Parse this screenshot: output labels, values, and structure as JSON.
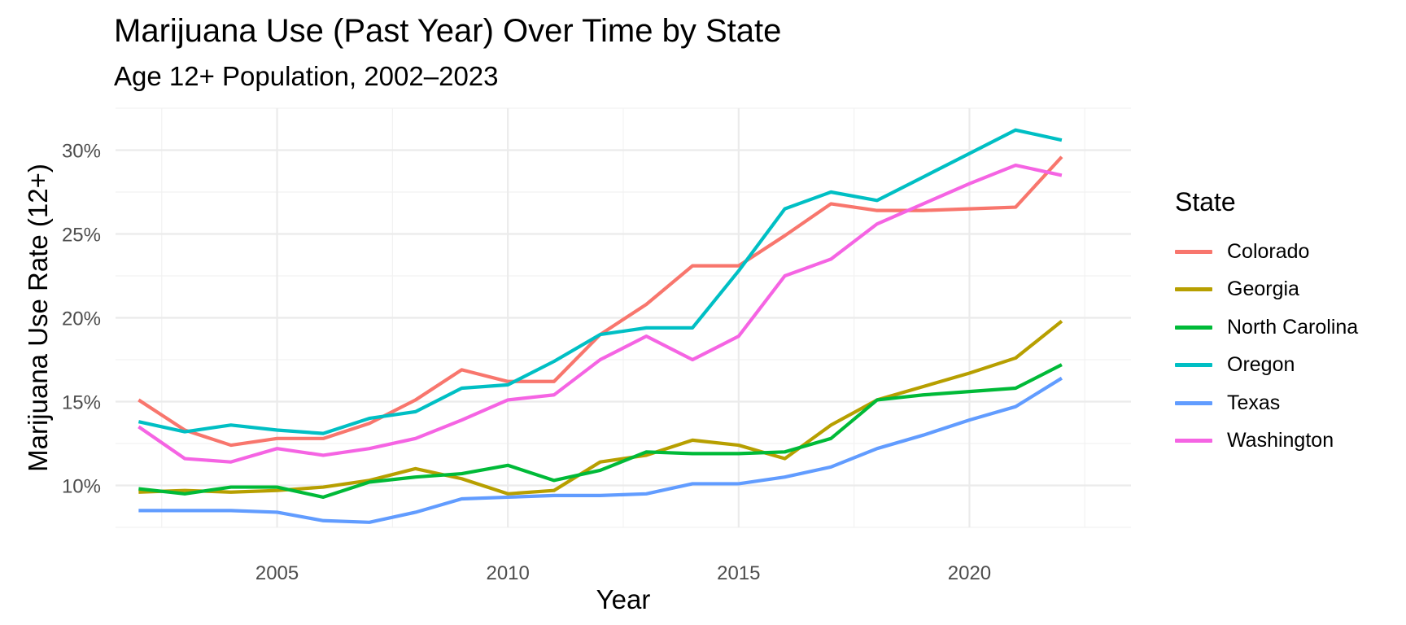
{
  "chart_data": {
    "type": "line",
    "title": "Marijuana Use (Past Year) Over Time by State",
    "subtitle": "Age 12+ Population, 2002–2023",
    "xlabel": "Year",
    "ylabel": "Marijuana Use Rate (12+)",
    "xlim": [
      2001.5,
      2023.5
    ],
    "ylim": [
      7.5,
      32.5
    ],
    "x_ticks": [
      2005,
      2010,
      2015,
      2020
    ],
    "y_ticks": [
      10,
      15,
      20,
      25,
      30
    ],
    "y_tick_labels": [
      "10%",
      "15%",
      "20%",
      "25%",
      "30%"
    ],
    "grid": true,
    "legend_title": "State",
    "legend_position": "right",
    "x": [
      2002,
      2003,
      2004,
      2005,
      2006,
      2007,
      2008,
      2009,
      2010,
      2011,
      2012,
      2013,
      2014,
      2015,
      2016,
      2017,
      2018,
      2019,
      2020,
      2021,
      2022
    ],
    "series": [
      {
        "name": "Colorado",
        "color": "#F8766D",
        "values": [
          15.1,
          13.3,
          12.4,
          12.8,
          12.8,
          13.7,
          15.1,
          16.9,
          16.2,
          16.2,
          19.0,
          20.8,
          23.1,
          23.1,
          24.9,
          26.8,
          26.4,
          26.4,
          26.5,
          26.6,
          29.6
        ]
      },
      {
        "name": "Georgia",
        "color": "#B79F00",
        "values": [
          9.6,
          9.7,
          9.6,
          9.7,
          9.9,
          10.3,
          11.0,
          10.4,
          9.5,
          9.7,
          11.4,
          11.8,
          12.7,
          12.4,
          11.6,
          13.6,
          15.1,
          15.9,
          16.7,
          17.6,
          19.8
        ]
      },
      {
        "name": "North Carolina",
        "color": "#00BA38",
        "values": [
          9.8,
          9.5,
          9.9,
          9.9,
          9.3,
          10.2,
          10.5,
          10.7,
          11.2,
          10.3,
          10.9,
          12.0,
          11.9,
          11.9,
          12.0,
          12.8,
          15.1,
          15.4,
          15.6,
          15.8,
          17.2
        ]
      },
      {
        "name": "Oregon",
        "color": "#00BFC4",
        "values": [
          13.8,
          13.2,
          13.6,
          13.3,
          13.1,
          14.0,
          14.4,
          15.8,
          16.0,
          17.4,
          19.0,
          19.4,
          19.4,
          22.8,
          26.5,
          27.5,
          27.0,
          28.4,
          29.8,
          31.2,
          30.6
        ]
      },
      {
        "name": "Texas",
        "color": "#619CFF",
        "values": [
          8.5,
          8.5,
          8.5,
          8.4,
          7.9,
          7.8,
          8.4,
          9.2,
          9.3,
          9.4,
          9.4,
          9.5,
          10.1,
          10.1,
          10.5,
          11.1,
          12.2,
          13.0,
          13.9,
          14.7,
          16.4
        ]
      },
      {
        "name": "Washington",
        "color": "#F564E3",
        "values": [
          13.5,
          11.6,
          11.4,
          12.2,
          11.8,
          12.2,
          12.8,
          13.9,
          15.1,
          15.4,
          17.5,
          18.9,
          17.5,
          18.9,
          22.5,
          23.5,
          25.6,
          26.8,
          28.0,
          29.1,
          28.5
        ]
      }
    ]
  }
}
